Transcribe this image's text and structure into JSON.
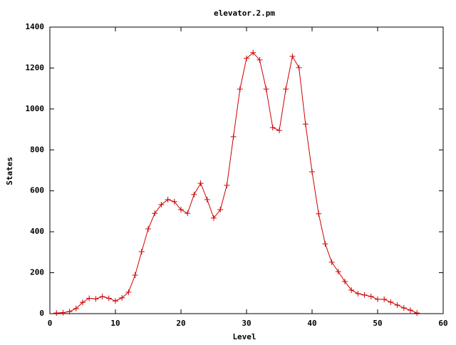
{
  "chart_data": {
    "type": "line",
    "title": "elevator.2.pm",
    "x_label": "Level",
    "y_label": "States",
    "x": [
      1,
      2,
      3,
      4,
      5,
      6,
      7,
      8,
      9,
      10,
      11,
      12,
      13,
      14,
      15,
      16,
      17,
      18,
      19,
      20,
      21,
      22,
      23,
      24,
      25,
      26,
      27,
      28,
      29,
      30,
      31,
      32,
      33,
      34,
      35,
      36,
      37,
      38,
      39,
      40,
      41,
      42,
      43,
      44,
      45,
      46,
      47,
      48,
      49,
      50,
      51,
      52,
      53,
      54,
      55,
      56
    ],
    "values": [
      3,
      5,
      10,
      25,
      55,
      75,
      72,
      83,
      75,
      62,
      77,
      105,
      188,
      303,
      414,
      490,
      533,
      557,
      547,
      508,
      490,
      582,
      637,
      557,
      467,
      508,
      627,
      864,
      1097,
      1247,
      1275,
      1240,
      1097,
      909,
      895,
      1097,
      1257,
      1202,
      926,
      693,
      488,
      341,
      251,
      205,
      157,
      115,
      98,
      91,
      84,
      70,
      70,
      56,
      42,
      28,
      17,
      3
    ],
    "color": "#cc0000",
    "xlim": [
      0,
      60
    ],
    "xticks": [
      0,
      10,
      20,
      30,
      40,
      50,
      60
    ],
    "ylim": [
      0,
      1400
    ],
    "yticks": [
      0,
      200,
      400,
      600,
      800,
      1000,
      1200,
      1400
    ],
    "grid": false
  }
}
